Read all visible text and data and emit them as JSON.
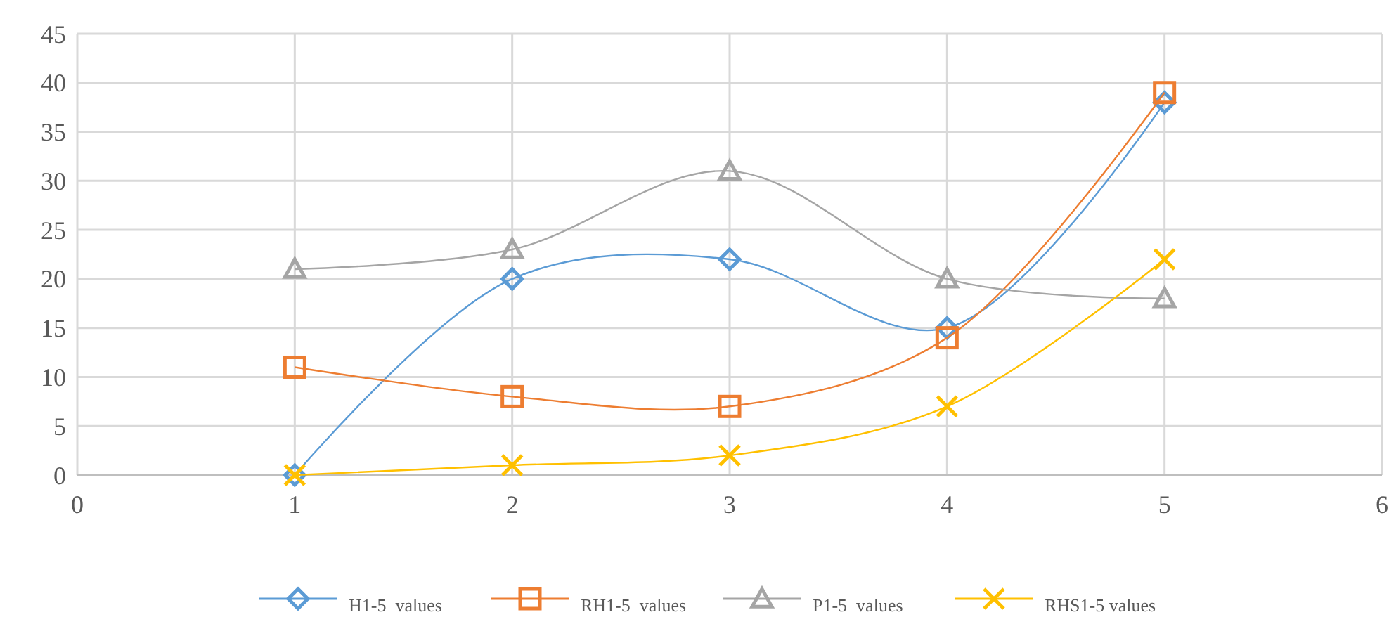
{
  "chart_data": {
    "type": "line",
    "x": [
      1,
      2,
      3,
      4,
      5
    ],
    "xlim": [
      0,
      6
    ],
    "xticks": [
      0,
      1,
      2,
      3,
      4,
      5,
      6
    ],
    "ylim": [
      0,
      45
    ],
    "yticks": [
      0,
      5,
      10,
      15,
      20,
      25,
      30,
      35,
      40,
      45
    ],
    "grid": true,
    "legend": "bottom",
    "series": [
      {
        "name": "H1-5  values",
        "color": "#5b9bd5",
        "marker": "diamond",
        "values": [
          0,
          20,
          22,
          15,
          38
        ]
      },
      {
        "name": "RH1-5  values",
        "color": "#ed7d31",
        "marker": "square",
        "values": [
          11,
          8,
          7,
          14,
          39
        ]
      },
      {
        "name": "P1-5  values",
        "color": "#a5a5a5",
        "marker": "triangle",
        "values": [
          21,
          23,
          31,
          20,
          18
        ]
      },
      {
        "name": "RHS1-5 values",
        "color": "#ffc000",
        "marker": "cross",
        "values": [
          0,
          1,
          2,
          7,
          22
        ]
      }
    ]
  }
}
